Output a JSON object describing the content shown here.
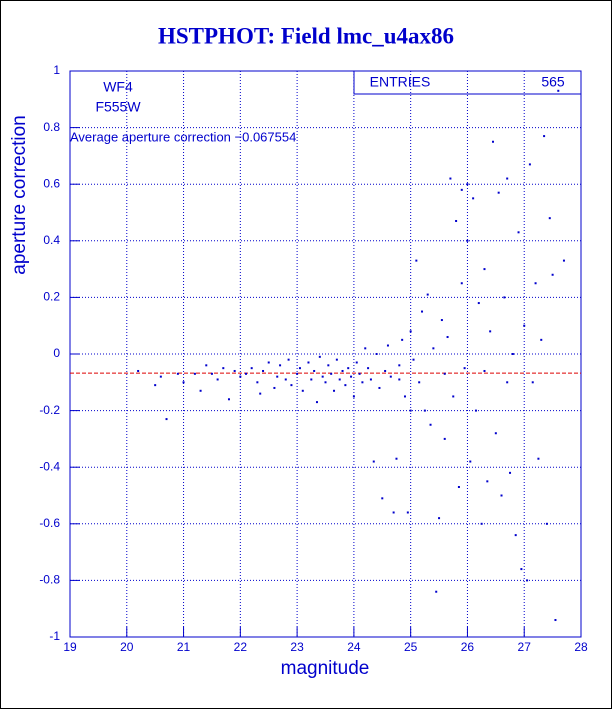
{
  "chart_data": {
    "type": "scatter",
    "title": "HSTPHOT: Field lmc_u4ax86",
    "xlabel": "magnitude",
    "ylabel": "aperture correction",
    "xlim": [
      19,
      28
    ],
    "ylim": [
      -1,
      1
    ],
    "xticks": [
      19,
      20,
      21,
      22,
      23,
      24,
      25,
      26,
      27,
      28
    ],
    "yticks": [
      -1,
      -0.8,
      -0.6,
      -0.4,
      -0.2,
      0,
      0.2,
      0.4,
      0.6,
      0.8,
      1
    ],
    "grid": true,
    "color": "#0000cc",
    "labels": [
      "WF4",
      "F555W"
    ],
    "reference_text": "Average aperture correction −0.067554",
    "reference_line": -0.067554,
    "reference_color": "#dd0000",
    "stats_label": "ENTRIES",
    "entries": 565,
    "series": [
      {
        "color": "#0000cc",
        "x": [
          20.2,
          20.5,
          20.6,
          20.7,
          20.9,
          21.0,
          21.2,
          21.3,
          21.4,
          21.5,
          21.6,
          21.7,
          21.8,
          21.9,
          22.0,
          22.1,
          22.2,
          22.3,
          22.35,
          22.4,
          22.5,
          22.6,
          22.65,
          22.7,
          22.8,
          22.85,
          22.9,
          23.0,
          23.05,
          23.1,
          23.2,
          23.25,
          23.3,
          23.35,
          23.4,
          23.45,
          23.5,
          23.55,
          23.6,
          23.65,
          23.7,
          23.75,
          23.8,
          23.85,
          23.9,
          23.95,
          24.0,
          24.05,
          24.1,
          24.15,
          24.2,
          24.25,
          24.3,
          24.35,
          24.4,
          24.45,
          24.5,
          24.55,
          24.6,
          24.65,
          24.7,
          24.75,
          24.8,
          24.85,
          24.9,
          24.95,
          25.0,
          25.05,
          25.1,
          25.15,
          25.2,
          25.25,
          25.3,
          25.35,
          25.4,
          25.45,
          25.5,
          25.55,
          25.6,
          25.65,
          25.7,
          25.75,
          25.8,
          25.85,
          25.9,
          25.95,
          26.0,
          26.05,
          26.1,
          26.15,
          26.2,
          26.25,
          26.3,
          26.35,
          26.4,
          26.45,
          26.5,
          26.55,
          26.6,
          26.65,
          26.7,
          26.75,
          26.8,
          26.85,
          26.9,
          26.95,
          27.0,
          27.05,
          27.1,
          27.15,
          27.2,
          27.25,
          27.3,
          27.35,
          27.4,
          27.45,
          27.5,
          27.55,
          27.6,
          27.7,
          26.0,
          25.9,
          26.3,
          25.6,
          26.7,
          24.8,
          25.0
        ],
        "y": [
          -0.06,
          -0.11,
          -0.08,
          -0.23,
          -0.07,
          -0.1,
          -0.07,
          -0.13,
          -0.04,
          -0.07,
          -0.09,
          -0.05,
          -0.16,
          -0.06,
          -0.08,
          -0.07,
          -0.05,
          -0.1,
          -0.14,
          -0.06,
          -0.03,
          -0.12,
          -0.08,
          -0.04,
          -0.09,
          -0.02,
          -0.11,
          -0.07,
          -0.05,
          -0.13,
          -0.03,
          -0.09,
          -0.06,
          -0.17,
          -0.01,
          -0.08,
          -0.1,
          -0.04,
          -0.07,
          -0.13,
          -0.02,
          -0.09,
          -0.06,
          -0.11,
          -0.05,
          -0.08,
          -0.15,
          -0.03,
          -0.07,
          -0.1,
          0.02,
          -0.05,
          -0.09,
          -0.38,
          0.0,
          -0.12,
          -0.51,
          -0.06,
          0.03,
          -0.08,
          -0.56,
          -0.37,
          -0.04,
          0.05,
          -0.15,
          -0.56,
          0.08,
          -0.02,
          0.33,
          -0.1,
          0.15,
          -0.2,
          0.21,
          -0.25,
          0.02,
          -0.84,
          -0.58,
          0.12,
          -0.3,
          0.06,
          0.62,
          -0.15,
          0.47,
          -0.47,
          0.25,
          -0.05,
          0.4,
          -0.38,
          0.55,
          -0.2,
          0.18,
          -0.6,
          0.3,
          -0.45,
          0.08,
          0.75,
          -0.28,
          0.57,
          -0.5,
          0.2,
          0.62,
          -0.42,
          0.0,
          -0.64,
          0.43,
          -0.76,
          0.1,
          -0.8,
          0.67,
          -0.1,
          0.25,
          -0.37,
          0.05,
          0.77,
          -0.6,
          0.48,
          0.28,
          -0.94,
          0.93,
          0.33,
          0.6,
          0.58,
          -0.06,
          -0.07,
          -0.1,
          -0.09,
          -0.2
        ]
      }
    ]
  }
}
